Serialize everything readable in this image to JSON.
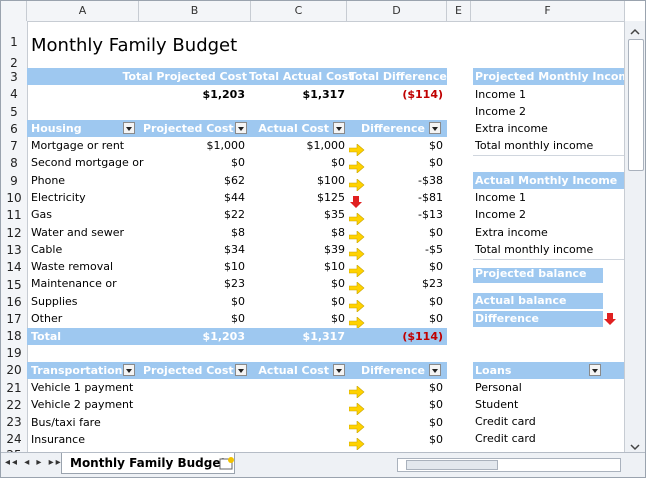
{
  "columns": [
    "A",
    "B",
    "C",
    "D",
    "E",
    "F"
  ],
  "rows": [
    "1",
    "2",
    "3",
    "4",
    "5",
    "6",
    "7",
    "8",
    "9",
    "10",
    "11",
    "12",
    "13",
    "14",
    "15",
    "16",
    "17",
    "18",
    "19",
    "20",
    "21",
    "22",
    "23",
    "24",
    "25"
  ],
  "title": "Monthly Family Budget",
  "summary": {
    "h1": "Total Projected Cost",
    "h2": "Total Actual Cost",
    "h3": "Total Difference",
    "v1": "$1,203",
    "v2": "$1,317",
    "v3": "($114)"
  },
  "housing": {
    "headers": [
      "Housing",
      "Projected Cost",
      "Actual Cost",
      "Difference"
    ],
    "rows": [
      [
        "Mortgage or rent",
        "$1,000",
        "$1,000",
        "$0",
        "right"
      ],
      [
        "Second mortgage or",
        "$0",
        "$0",
        "$0",
        "right"
      ],
      [
        "Phone",
        "$62",
        "$100",
        "-$38",
        "right"
      ],
      [
        "Electricity",
        "$44",
        "$125",
        "-$81",
        "down"
      ],
      [
        "Gas",
        "$22",
        "$35",
        "-$13",
        "right"
      ],
      [
        "Water and sewer",
        "$8",
        "$8",
        "$0",
        "right"
      ],
      [
        "Cable",
        "$34",
        "$39",
        "-$5",
        "right"
      ],
      [
        "Waste removal",
        "$10",
        "$10",
        "$0",
        "right"
      ],
      [
        "Maintenance or",
        "$23",
        "$0",
        "$23",
        "right"
      ],
      [
        "Supplies",
        "$0",
        "$0",
        "$0",
        "right"
      ],
      [
        "Other",
        "$0",
        "$0",
        "$0",
        "right"
      ]
    ],
    "total": [
      "Total",
      "$1,203",
      "$1,317",
      "($114)"
    ]
  },
  "transport": {
    "headers": [
      "Transportation",
      "Projected Cost",
      "Actual Cost",
      "Difference"
    ],
    "rows": [
      [
        "Vehicle 1 payment",
        "",
        "",
        "$0",
        "right"
      ],
      [
        "Vehicle 2 payment",
        "",
        "",
        "$0",
        "right"
      ],
      [
        "Bus/taxi fare",
        "",
        "",
        "$0",
        "right"
      ],
      [
        "Insurance",
        "",
        "",
        "$0",
        "right"
      ]
    ]
  },
  "projected_income": {
    "header": "Projected Monthly Income",
    "items": [
      "Income 1",
      "Income 2",
      "Extra income",
      "Total monthly income"
    ]
  },
  "actual_income": {
    "header": "Actual Monthly Income",
    "items": [
      "Income 1",
      "Income 2",
      "Extra income",
      "Total monthly income"
    ]
  },
  "balances": {
    "projected": "Projected balance",
    "actual": "Actual balance",
    "difference": "Difference"
  },
  "loans": {
    "header": "Loans",
    "items": [
      "Personal",
      "Student",
      "Credit card",
      "Credit card"
    ]
  },
  "sheet_tab": "Monthly Family Budget",
  "colors": {
    "header": "#9ec8f0",
    "arrow_yellow": "#ffd200",
    "arrow_red": "#e02020"
  }
}
